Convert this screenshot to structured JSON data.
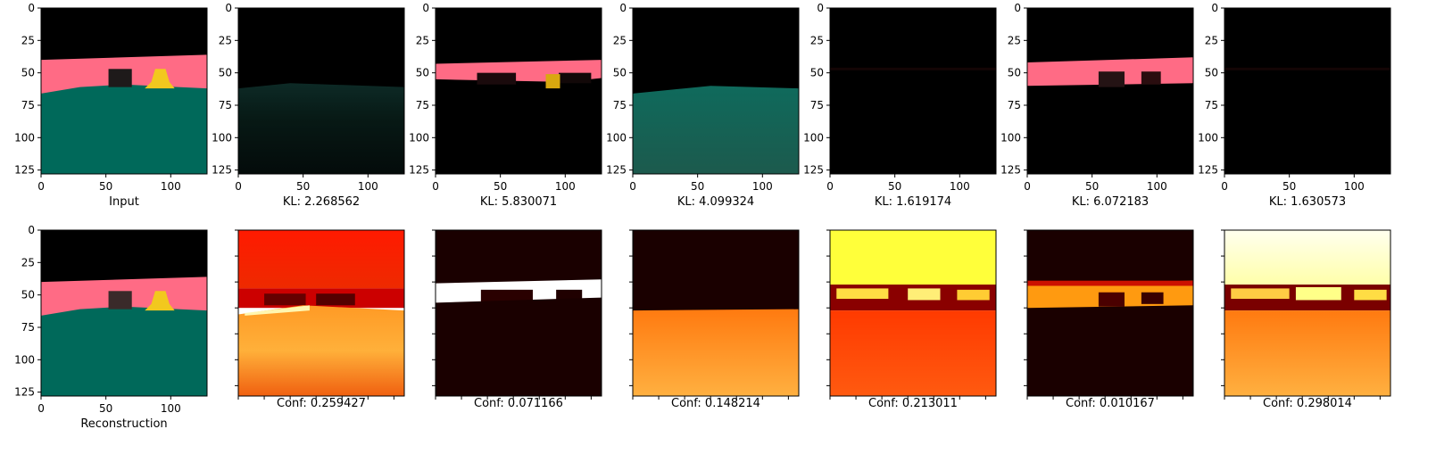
{
  "figure": {
    "colors": {
      "floor_teal": "#00695a",
      "wall_pink": "#ff6b85",
      "sky_black": "#000000",
      "object_yellow": "#f2c81e",
      "object_dark": "#1e1a1a",
      "heat_dark": "#1a0000",
      "heat_red": "#ff0000",
      "heat_orange": "#ff8c1a",
      "heat_yellow": "#ffff33",
      "heat_white": "#ffffee"
    },
    "top_row": [
      {
        "label": "Input",
        "kind": "scene"
      },
      {
        "label": "KL: 2.268562",
        "kind": "slot_floor_faint"
      },
      {
        "label": "KL: 5.830071",
        "kind": "slot_wall_object"
      },
      {
        "label": "KL: 4.099324",
        "kind": "slot_floor"
      },
      {
        "label": "KL: 1.619174",
        "kind": "slot_dark"
      },
      {
        "label": "KL: 6.072183",
        "kind": "slot_wall"
      },
      {
        "label": "KL: 1.630573",
        "kind": "slot_dark"
      }
    ],
    "bottom_row": [
      {
        "label": "Reconstruction",
        "kind": "scene_recon"
      },
      {
        "label": "Conf: 0.259427",
        "kind": "heat_floor"
      },
      {
        "label": "Conf: 0.071166",
        "kind": "heat_wall_object"
      },
      {
        "label": "Conf: 0.148214",
        "kind": "heat_floor_only"
      },
      {
        "label": "Conf: 0.213011",
        "kind": "heat_sky"
      },
      {
        "label": "Conf: 0.010167",
        "kind": "heat_wall"
      },
      {
        "label": "Conf: 0.298014",
        "kind": "heat_sky_white"
      }
    ]
  },
  "chart_data": {
    "type": "heatmap",
    "description_axes": {
      "x_ticks": [
        0,
        50,
        100
      ],
      "y_ticks": [
        0,
        25,
        50,
        75,
        100,
        125
      ],
      "x_range": [
        0,
        128
      ],
      "y_range": [
        128,
        0
      ]
    },
    "kl_values": [
      2.268562,
      5.830071,
      4.099324,
      1.619174,
      6.072183,
      1.630573
    ],
    "conf_values": [
      0.259427,
      0.071166,
      0.148214,
      0.213011,
      0.010167,
      0.298014
    ]
  }
}
